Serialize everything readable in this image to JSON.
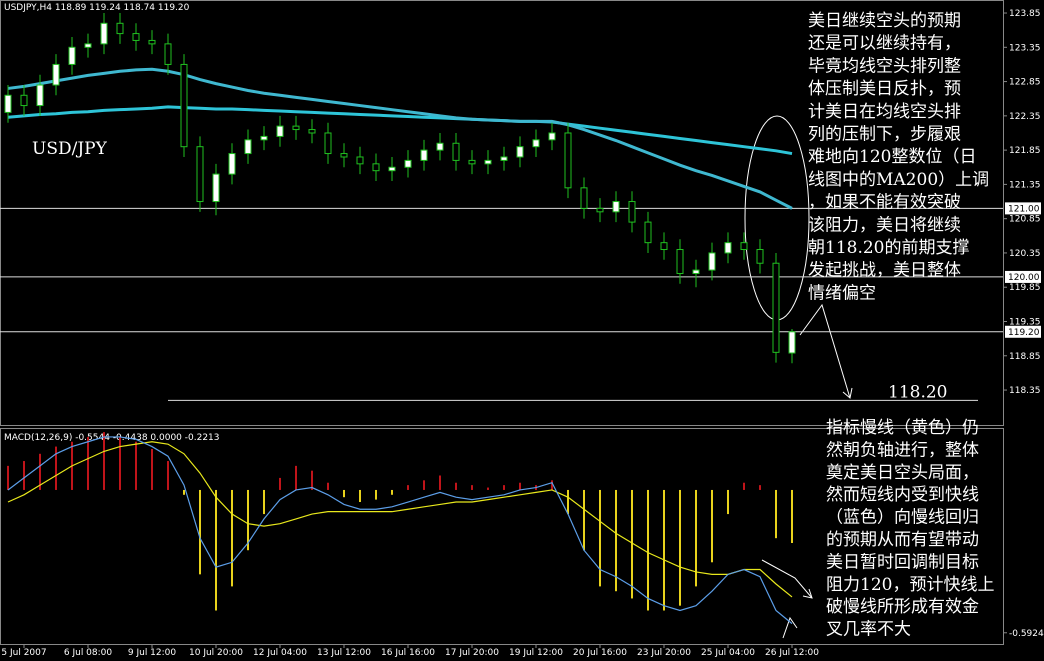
{
  "chart_data": [
    {
      "type": "candlestick",
      "title": "USDJPY,H4  118.89 119.24 118.74 119.20",
      "annotation": "USD/JPY",
      "open": [
        122.4,
        122.65,
        122.5,
        122.8,
        123.1,
        123.35,
        123.4,
        123.7,
        123.55,
        123.45,
        123.4,
        123.1,
        121.9,
        121.1,
        121.5,
        121.8,
        122.0,
        122.05,
        122.2,
        122.15,
        122.1,
        121.8,
        121.75,
        121.65,
        121.55,
        121.6,
        121.7,
        121.85,
        121.95,
        121.7,
        121.65,
        121.7,
        121.75,
        121.9,
        122.0,
        122.1,
        121.3,
        121.0,
        120.95,
        121.1,
        120.8,
        120.5,
        120.4,
        120.05,
        120.1,
        120.35,
        120.5,
        120.4,
        120.2,
        118.89
      ],
      "high": [
        122.8,
        122.8,
        122.95,
        123.25,
        123.5,
        123.55,
        123.85,
        123.85,
        123.7,
        123.6,
        123.55,
        123.25,
        122.05,
        121.65,
        121.95,
        122.15,
        122.2,
        122.35,
        122.35,
        122.3,
        122.25,
        121.95,
        121.9,
        121.8,
        121.75,
        121.85,
        122.0,
        122.1,
        122.1,
        121.85,
        121.85,
        121.9,
        122.05,
        122.15,
        122.25,
        122.25,
        121.45,
        121.15,
        121.25,
        121.25,
        120.95,
        120.65,
        120.55,
        120.25,
        120.5,
        120.65,
        120.65,
        120.55,
        120.35,
        119.24
      ],
      "low": [
        122.25,
        122.35,
        122.35,
        122.65,
        122.95,
        123.2,
        123.25,
        123.4,
        123.3,
        123.25,
        122.95,
        121.75,
        120.95,
        120.9,
        121.35,
        121.65,
        121.85,
        121.9,
        122.0,
        121.95,
        121.65,
        121.6,
        121.5,
        121.4,
        121.4,
        121.45,
        121.55,
        121.7,
        121.55,
        121.5,
        121.5,
        121.55,
        121.6,
        121.75,
        121.85,
        121.15,
        120.85,
        120.8,
        120.8,
        120.65,
        120.35,
        120.25,
        119.9,
        119.85,
        119.95,
        120.2,
        120.25,
        120.05,
        118.75,
        118.74
      ],
      "close": [
        122.65,
        122.5,
        122.8,
        123.1,
        123.35,
        123.4,
        123.7,
        123.55,
        123.45,
        123.4,
        123.1,
        121.9,
        121.1,
        121.5,
        121.8,
        122.0,
        122.05,
        122.2,
        122.15,
        122.1,
        121.8,
        121.75,
        121.65,
        121.55,
        121.6,
        121.7,
        121.85,
        121.95,
        121.7,
        121.65,
        121.7,
        121.75,
        121.9,
        122.0,
        122.1,
        121.3,
        121.0,
        120.95,
        121.1,
        120.8,
        120.5,
        120.4,
        120.05,
        120.1,
        120.35,
        120.5,
        120.4,
        120.2,
        118.9,
        119.2
      ],
      "ma": [
        {
          "color": "#2ec4d8",
          "values": [
            122.33,
            122.35,
            122.37,
            122.38,
            122.4,
            122.41,
            122.43,
            122.44,
            122.45,
            122.46,
            122.48,
            122.47,
            122.46,
            122.45,
            122.45,
            122.44,
            122.43,
            122.42,
            122.41,
            122.4,
            122.39,
            122.38,
            122.37,
            122.36,
            122.35,
            122.34,
            122.33,
            122.32,
            122.31,
            122.3,
            122.29,
            122.28,
            122.27,
            122.27,
            122.26,
            122.23,
            122.2,
            122.17,
            122.14,
            122.11,
            122.08,
            122.05,
            122.02,
            121.99,
            121.96,
            121.93,
            121.9,
            121.87,
            121.84,
            121.8
          ]
        },
        {
          "color": "#3fb8d0",
          "values": [
            122.75,
            122.78,
            122.82,
            122.86,
            122.9,
            122.94,
            122.97,
            123.0,
            123.02,
            123.03,
            123.0,
            122.95,
            122.88,
            122.82,
            122.77,
            122.72,
            122.68,
            122.65,
            122.62,
            122.59,
            122.56,
            122.53,
            122.5,
            122.47,
            122.44,
            122.41,
            122.38,
            122.35,
            122.32,
            122.3,
            122.29,
            122.28,
            122.27,
            122.27,
            122.27,
            122.22,
            122.15,
            122.07,
            121.99,
            121.9,
            121.81,
            121.72,
            121.63,
            121.55,
            121.48,
            121.4,
            121.32,
            121.24,
            121.12,
            121.0
          ]
        }
      ],
      "ylim": [
        117.84,
        124.04
      ],
      "yticks": [
        123.85,
        123.35,
        122.85,
        122.35,
        121.85,
        121.35,
        120.85,
        120.35,
        119.85,
        119.35,
        118.85,
        118.35
      ],
      "levels": [
        {
          "value": 121,
          "label": "121.00"
        },
        {
          "value": 120,
          "label": "120.00"
        },
        {
          "value": 119.2,
          "label": "119.20"
        }
      ],
      "support": {
        "value": 118.2,
        "label": "118.20"
      },
      "xticks": [
        {
          "value": 1,
          "label": "5 Jul 2007"
        },
        {
          "value": 5,
          "label": "6 Jul 08:00"
        },
        {
          "value": 9,
          "label": "9 Jul 12:00"
        },
        {
          "value": 13,
          "label": "10 Jul 20:00"
        },
        {
          "value": 17,
          "label": "12 Jul 04:00"
        },
        {
          "value": 21,
          "label": "13 Jul 12:00"
        },
        {
          "value": 25,
          "label": "16 Jul 16:00"
        },
        {
          "value": 29,
          "label": "17 Jul 20:00"
        },
        {
          "value": 33,
          "label": "19 Jul 12:00"
        },
        {
          "value": 37,
          "label": "20 Jul 16:00"
        },
        {
          "value": 41,
          "label": "23 Jul 20:00"
        },
        {
          "value": 45,
          "label": "25 Jul 04:00"
        },
        {
          "value": 49,
          "label": "26 Jul 12:00"
        }
      ],
      "note_top": [
        "美日继续空头的预期",
        "还是可以继续持有，",
        "毕竟均线空头排列整",
        "体压制美日反扑，预",
        "计美日在均线空头排",
        "列的压制下，步履艰",
        "难地向120整数位（日",
        "线图中的MA200）上调",
        "，如果不能有效突破",
        "该阻力，美日将继续",
        "朝118.20的前期支撑",
        "发起挑战，美日整体",
        "情绪偏空"
      ]
    },
    {
      "type": "macd",
      "title": "MACD(12,26,9) -0.5544 -0.4438 0.0000 -0.2213",
      "histogram": [
        0.1,
        0.12,
        0.15,
        0.18,
        0.2,
        0.22,
        0.24,
        0.22,
        0.2,
        0.17,
        0.12,
        -0.02,
        -0.35,
        -0.5,
        -0.4,
        -0.25,
        -0.1,
        0.05,
        0.1,
        0.08,
        0.03,
        -0.03,
        -0.05,
        -0.04,
        -0.02,
        0.02,
        0.04,
        0.06,
        0.03,
        0.02,
        0.01,
        0.02,
        0.03,
        0.02,
        0.04,
        -0.1,
        -0.25,
        -0.4,
        -0.42,
        -0.45,
        -0.5,
        -0.5,
        -0.48,
        -0.4,
        -0.3,
        -0.1,
        0.03,
        0.02,
        -0.2,
        -0.22
      ],
      "positive_color": "#c0141a",
      "negative_color": "#e8d21c",
      "series": [
        {
          "color": "#e8e81c",
          "values": [
            -0.05,
            -0.02,
            0.02,
            0.06,
            0.1,
            0.13,
            0.16,
            0.18,
            0.19,
            0.2,
            0.19,
            0.15,
            0.07,
            -0.03,
            -0.1,
            -0.14,
            -0.15,
            -0.14,
            -0.12,
            -0.1,
            -0.09,
            -0.09,
            -0.09,
            -0.09,
            -0.09,
            -0.08,
            -0.07,
            -0.06,
            -0.05,
            -0.05,
            -0.04,
            -0.03,
            -0.02,
            -0.01,
            0.0,
            -0.03,
            -0.08,
            -0.13,
            -0.18,
            -0.22,
            -0.26,
            -0.29,
            -0.32,
            -0.34,
            -0.35,
            -0.35,
            -0.33,
            -0.33,
            -0.39,
            -0.4438
          ]
        },
        {
          "color": "#5c9ee8",
          "values": [
            0.0,
            0.05,
            0.1,
            0.15,
            0.18,
            0.2,
            0.22,
            0.22,
            0.21,
            0.18,
            0.14,
            0.02,
            -0.2,
            -0.32,
            -0.3,
            -0.22,
            -0.12,
            -0.04,
            0.0,
            0.01,
            -0.02,
            -0.06,
            -0.08,
            -0.08,
            -0.07,
            -0.05,
            -0.03,
            -0.01,
            -0.03,
            -0.04,
            -0.03,
            -0.02,
            0.0,
            0.01,
            0.03,
            -0.1,
            -0.25,
            -0.33,
            -0.36,
            -0.4,
            -0.45,
            -0.48,
            -0.5,
            -0.48,
            -0.42,
            -0.35,
            -0.33,
            -0.36,
            -0.5,
            -0.5544
          ]
        }
      ],
      "ylim": [
        -0.697,
        0.257
      ],
      "yticks": [
        -0.5924
      ],
      "note_bottom": [
        "指标慢线（黄色）仍",
        "然朝负轴进行，整体",
        "奠定美日空头局面，",
        "然而短线内受到快线",
        "（蓝色）向慢线回归",
        "的预期从而有望带动",
        "美日暂时回调制目标",
        "阻力120，预计快线上",
        "破慢线所形成有效金",
        "叉几率不大"
      ]
    }
  ]
}
